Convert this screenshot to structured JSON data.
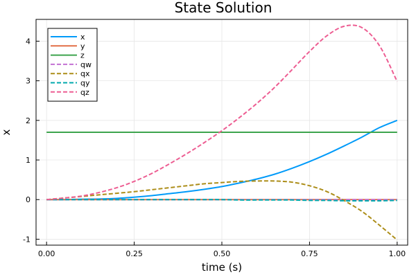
{
  "chart_data": {
    "type": "line",
    "title": "State Solution",
    "xlabel": "time (s)",
    "ylabel": "x",
    "xlim": [
      -0.03,
      1.03
    ],
    "ylim": [
      -1.15,
      4.55
    ],
    "xticks": [
      0.0,
      0.25,
      0.5,
      0.75,
      1.0
    ],
    "xtick_labels": [
      "0.00",
      "0.25",
      "0.50",
      "0.75",
      "1.00"
    ],
    "yticks": [
      -1,
      0,
      1,
      2,
      3,
      4
    ],
    "ytick_labels": [
      "-1",
      "0",
      "1",
      "2",
      "3",
      "4"
    ],
    "grid": true,
    "legend_position": "top-left",
    "x": [
      0.0,
      0.05,
      0.1,
      0.15,
      0.2,
      0.25,
      0.3,
      0.35,
      0.4,
      0.45,
      0.5,
      0.55,
      0.6,
      0.65,
      0.7,
      0.75,
      0.8,
      0.85,
      0.9,
      0.95,
      1.0
    ],
    "series": [
      {
        "name": "x",
        "color": "#009af9",
        "dash": "solid",
        "values": [
          0.0,
          0.0,
          0.01,
          0.015,
          0.03,
          0.06,
          0.1,
          0.15,
          0.2,
          0.26,
          0.33,
          0.42,
          0.52,
          0.64,
          0.79,
          0.96,
          1.15,
          1.36,
          1.58,
          1.82,
          2.0
        ]
      },
      {
        "name": "y",
        "color": "#e26f46",
        "dash": "solid",
        "values": [
          0,
          0,
          0,
          0,
          0,
          0,
          0,
          0,
          0,
          0,
          0,
          0,
          0,
          0,
          0,
          0,
          0,
          0,
          0,
          0,
          0
        ]
      },
      {
        "name": "z",
        "color": "#3da44d",
        "dash": "solid",
        "values": [
          1.7,
          1.7,
          1.7,
          1.7,
          1.7,
          1.7,
          1.7,
          1.7,
          1.7,
          1.7,
          1.7,
          1.7,
          1.7,
          1.7,
          1.7,
          1.7,
          1.7,
          1.7,
          1.7,
          1.7,
          1.7
        ]
      },
      {
        "name": "qw",
        "color": "#c271d2",
        "dash": "dash",
        "values": [
          0,
          0,
          0,
          0,
          0,
          0,
          0,
          0,
          0,
          0,
          0,
          0,
          0,
          0,
          0,
          0,
          0,
          0,
          0,
          0,
          0
        ]
      },
      {
        "name": "qx",
        "color": "#ac8d18",
        "dash": "dash",
        "values": [
          0.0,
          0.04,
          0.08,
          0.12,
          0.16,
          0.2,
          0.25,
          0.3,
          0.35,
          0.4,
          0.43,
          0.46,
          0.47,
          0.47,
          0.44,
          0.35,
          0.2,
          -0.03,
          -0.3,
          -0.65,
          -1.02
        ]
      },
      {
        "name": "qy",
        "color": "#00a9ad",
        "dash": "dash",
        "values": [
          0,
          0,
          0,
          0,
          0,
          0,
          0,
          0,
          0,
          0,
          0,
          -0.01,
          -0.01,
          -0.01,
          -0.01,
          -0.02,
          -0.02,
          -0.03,
          -0.03,
          -0.03,
          -0.02
        ]
      },
      {
        "name": "qz",
        "color": "#ed5d92",
        "dash": "dash",
        "values": [
          0.0,
          0.04,
          0.09,
          0.18,
          0.3,
          0.46,
          0.66,
          0.9,
          1.16,
          1.44,
          1.74,
          2.07,
          2.43,
          2.83,
          3.28,
          3.74,
          4.14,
          4.38,
          4.34,
          3.88,
          2.98
        ]
      }
    ]
  }
}
